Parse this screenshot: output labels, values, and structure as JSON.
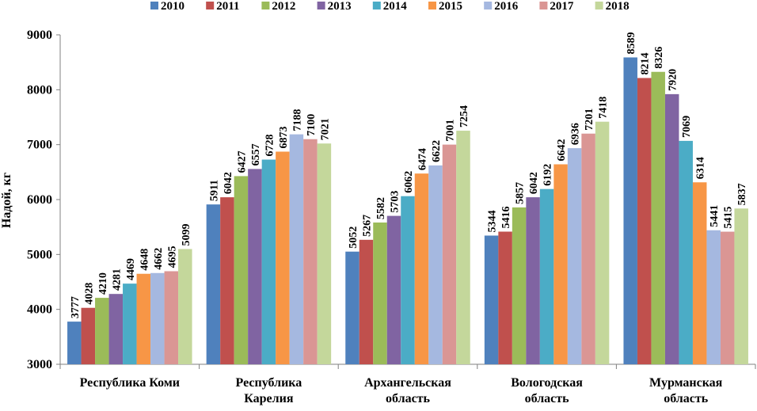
{
  "chart_data": {
    "type": "bar",
    "title": "",
    "xlabel": "",
    "ylabel": "Надой, кг",
    "ylim": [
      3000,
      9000
    ],
    "yticks": [
      3000,
      4000,
      5000,
      6000,
      7000,
      8000,
      9000
    ],
    "grid": false,
    "legend_position": "top",
    "categories": [
      [
        "Республика Коми"
      ],
      [
        "Республика",
        "Карелия"
      ],
      [
        "Архангельская",
        "область"
      ],
      [
        "Вологодская",
        "область"
      ],
      [
        "Мурманская",
        "область"
      ]
    ],
    "series": [
      {
        "name": "2010",
        "color": "#4F81BD",
        "values": [
          3777,
          5911,
          5052,
          5344,
          8589
        ]
      },
      {
        "name": "2011",
        "color": "#C0504D",
        "values": [
          4028,
          6042,
          5267,
          5416,
          8214
        ]
      },
      {
        "name": "2012",
        "color": "#9BBB59",
        "values": [
          4210,
          6427,
          5582,
          5857,
          8326
        ]
      },
      {
        "name": "2013",
        "color": "#8064A2",
        "values": [
          4281,
          6557,
          5703,
          6042,
          7920
        ]
      },
      {
        "name": "2014",
        "color": "#4BACC6",
        "values": [
          4469,
          6728,
          6062,
          6192,
          7069
        ]
      },
      {
        "name": "2015",
        "color": "#F79646",
        "values": [
          4648,
          6873,
          6474,
          6642,
          6314
        ]
      },
      {
        "name": "2016",
        "color": "#A5B8E0",
        "values": [
          4662,
          7188,
          6622,
          6936,
          5441
        ]
      },
      {
        "name": "2017",
        "color": "#DA9694",
        "values": [
          4695,
          7100,
          7001,
          7201,
          5415
        ]
      },
      {
        "name": "2018",
        "color": "#C4D79B",
        "values": [
          5099,
          7021,
          7254,
          7418,
          5837
        ]
      }
    ]
  }
}
